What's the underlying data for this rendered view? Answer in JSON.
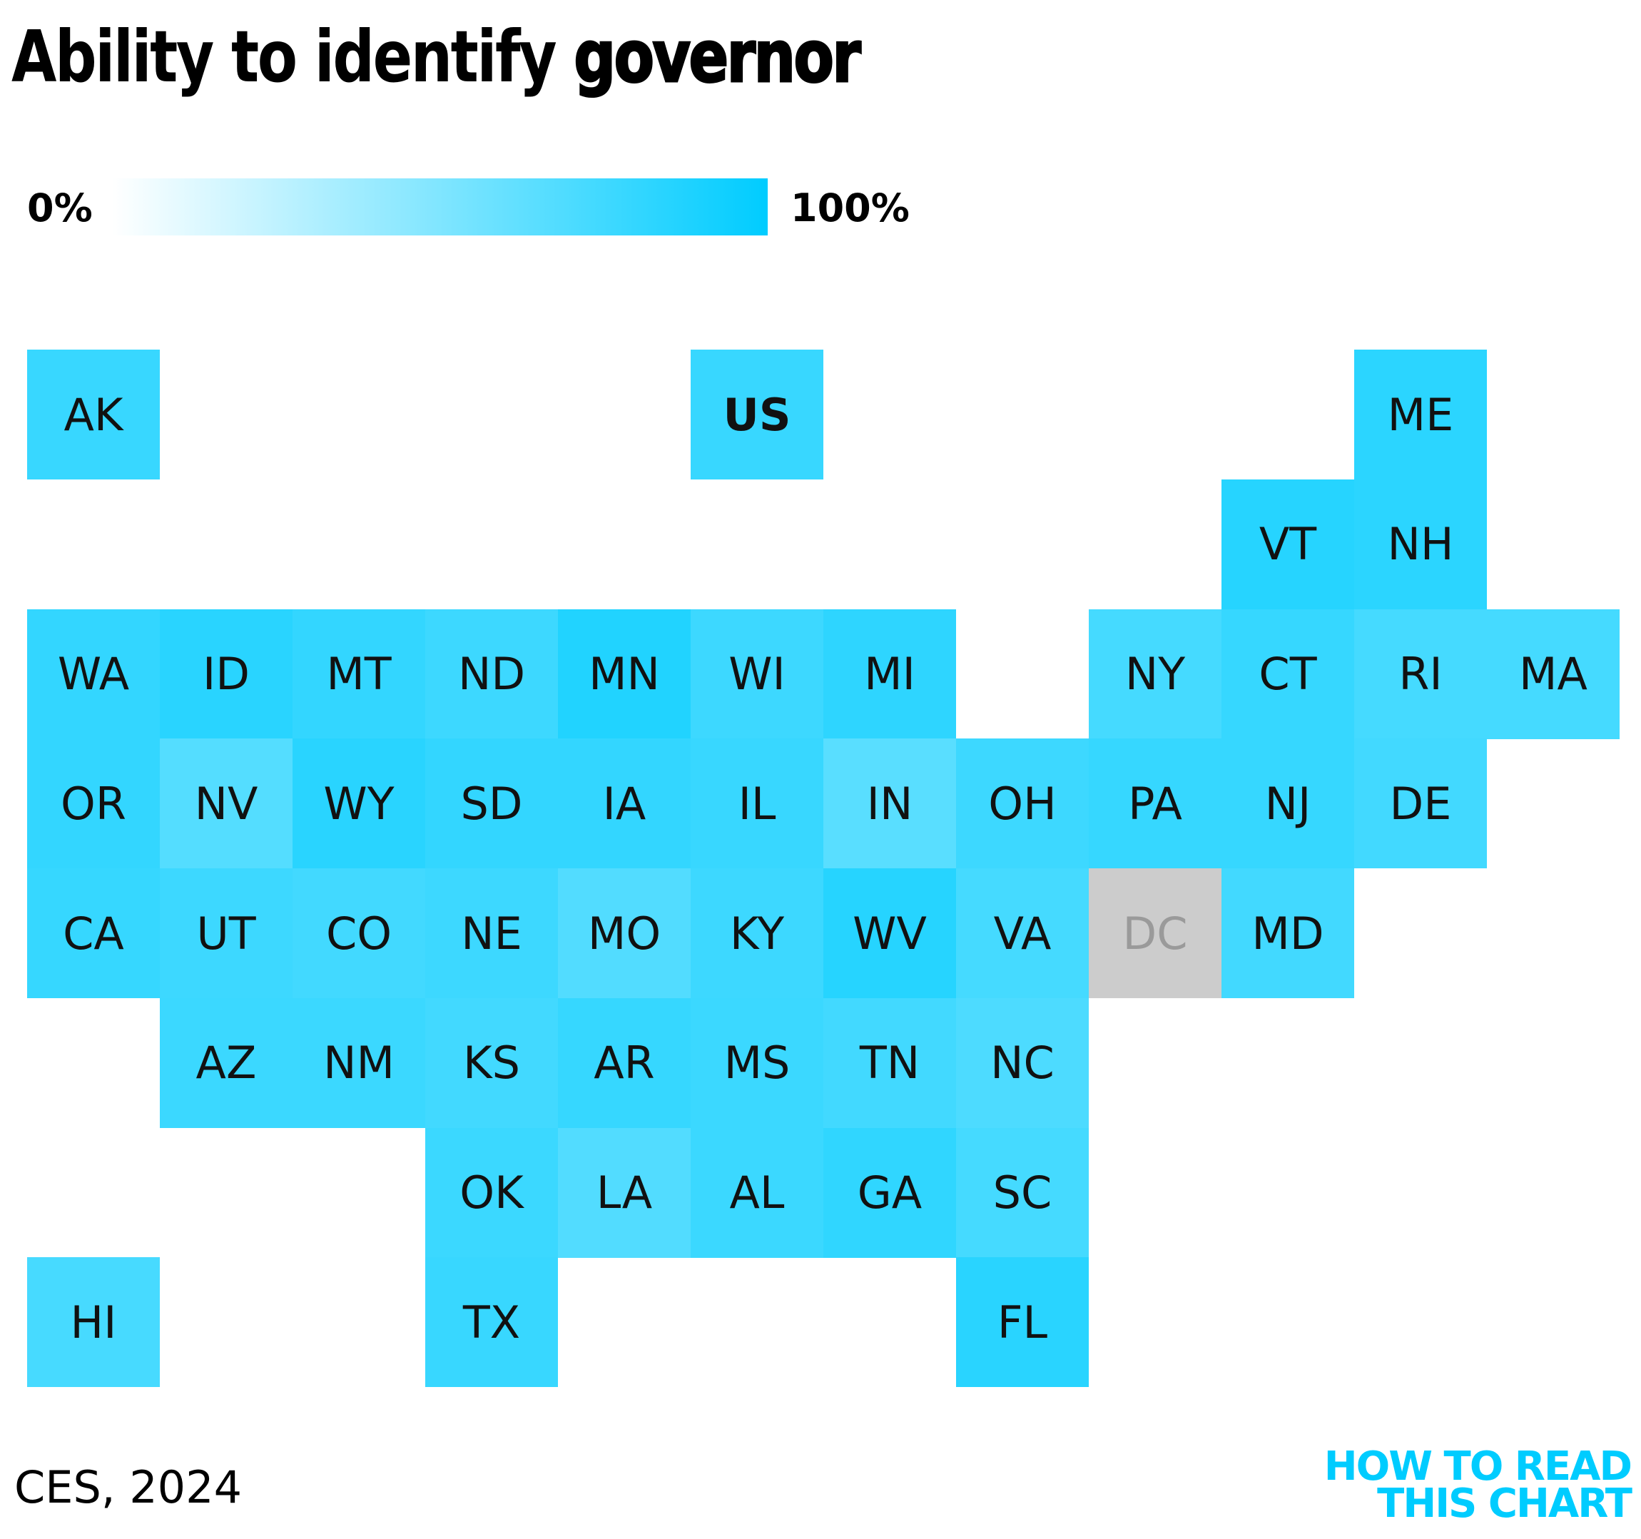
{
  "title": {
    "prefix": "Ability to identify ",
    "emphasis": "governor"
  },
  "legend": {
    "min_label": "0%",
    "max_label": "100%",
    "min_color": "#FFFFFF",
    "max_color": "#00CCFF"
  },
  "source": "CES, 2024",
  "brand": {
    "line1": "HOW TO READ",
    "line2": "THIS CHART",
    "color": "#00CCFF"
  },
  "chart_data": {
    "type": "heatmap",
    "title": "Ability to identify governor",
    "scale": {
      "min": 0,
      "max": 100,
      "min_label": "0%",
      "max_label": "100%",
      "low_color": "#FFFFFF",
      "high_color": "#00CCFF",
      "no_data_color": "#CCCCCC"
    },
    "cells": [
      {
        "state": "AK",
        "col": 0,
        "row": 0,
        "value": 78
      },
      {
        "state": "US",
        "col": 5,
        "row": 0,
        "value": 78,
        "bold": true
      },
      {
        "state": "ME",
        "col": 10,
        "row": 0,
        "value": 83
      },
      {
        "state": "VT",
        "col": 9,
        "row": 1,
        "value": 85
      },
      {
        "state": "NH",
        "col": 10,
        "row": 1,
        "value": 83
      },
      {
        "state": "WA",
        "col": 0,
        "row": 2,
        "value": 80
      },
      {
        "state": "ID",
        "col": 1,
        "row": 2,
        "value": 84
      },
      {
        "state": "MT",
        "col": 2,
        "row": 2,
        "value": 80
      },
      {
        "state": "ND",
        "col": 3,
        "row": 2,
        "value": 76
      },
      {
        "state": "MN",
        "col": 4,
        "row": 2,
        "value": 87
      },
      {
        "state": "WI",
        "col": 5,
        "row": 2,
        "value": 76
      },
      {
        "state": "MI",
        "col": 6,
        "row": 2,
        "value": 82
      },
      {
        "state": "NY",
        "col": 8,
        "row": 2,
        "value": 73
      },
      {
        "state": "CT",
        "col": 9,
        "row": 2,
        "value": 79
      },
      {
        "state": "RI",
        "col": 10,
        "row": 2,
        "value": 73
      },
      {
        "state": "MA",
        "col": 11,
        "row": 2,
        "value": 73
      },
      {
        "state": "OR",
        "col": 0,
        "row": 3,
        "value": 80
      },
      {
        "state": "NV",
        "col": 1,
        "row": 3,
        "value": 67
      },
      {
        "state": "WY",
        "col": 2,
        "row": 3,
        "value": 84
      },
      {
        "state": "SD",
        "col": 3,
        "row": 3,
        "value": 80
      },
      {
        "state": "IA",
        "col": 4,
        "row": 3,
        "value": 80
      },
      {
        "state": "IL",
        "col": 5,
        "row": 3,
        "value": 78
      },
      {
        "state": "IN",
        "col": 6,
        "row": 3,
        "value": 65
      },
      {
        "state": "OH",
        "col": 7,
        "row": 3,
        "value": 76
      },
      {
        "state": "PA",
        "col": 8,
        "row": 3,
        "value": 79
      },
      {
        "state": "NJ",
        "col": 9,
        "row": 3,
        "value": 79
      },
      {
        "state": "DE",
        "col": 10,
        "row": 3,
        "value": 74
      },
      {
        "state": "CA",
        "col": 0,
        "row": 4,
        "value": 79
      },
      {
        "state": "UT",
        "col": 1,
        "row": 4,
        "value": 76
      },
      {
        "state": "CO",
        "col": 2,
        "row": 4,
        "value": 74
      },
      {
        "state": "NE",
        "col": 3,
        "row": 4,
        "value": 76
      },
      {
        "state": "MO",
        "col": 4,
        "row": 4,
        "value": 68
      },
      {
        "state": "KY",
        "col": 5,
        "row": 4,
        "value": 76
      },
      {
        "state": "WV",
        "col": 6,
        "row": 4,
        "value": 85
      },
      {
        "state": "VA",
        "col": 7,
        "row": 4,
        "value": 73
      },
      {
        "state": "DC",
        "col": 8,
        "row": 4,
        "value": null
      },
      {
        "state": "MD",
        "col": 9,
        "row": 4,
        "value": 74
      },
      {
        "state": "AZ",
        "col": 1,
        "row": 5,
        "value": 77
      },
      {
        "state": "NM",
        "col": 2,
        "row": 5,
        "value": 77
      },
      {
        "state": "KS",
        "col": 3,
        "row": 5,
        "value": 74
      },
      {
        "state": "AR",
        "col": 4,
        "row": 5,
        "value": 79
      },
      {
        "state": "MS",
        "col": 5,
        "row": 5,
        "value": 77
      },
      {
        "state": "TN",
        "col": 6,
        "row": 5,
        "value": 74
      },
      {
        "state": "NC",
        "col": 7,
        "row": 5,
        "value": 70
      },
      {
        "state": "OK",
        "col": 3,
        "row": 6,
        "value": 77
      },
      {
        "state": "LA",
        "col": 4,
        "row": 6,
        "value": 68
      },
      {
        "state": "AL",
        "col": 5,
        "row": 6,
        "value": 77
      },
      {
        "state": "GA",
        "col": 6,
        "row": 6,
        "value": 81
      },
      {
        "state": "SC",
        "col": 7,
        "row": 6,
        "value": 73
      },
      {
        "state": "HI",
        "col": 0,
        "row": 7,
        "value": 72
      },
      {
        "state": "TX",
        "col": 3,
        "row": 7,
        "value": 78
      },
      {
        "state": "FL",
        "col": 7,
        "row": 7,
        "value": 84
      }
    ]
  }
}
